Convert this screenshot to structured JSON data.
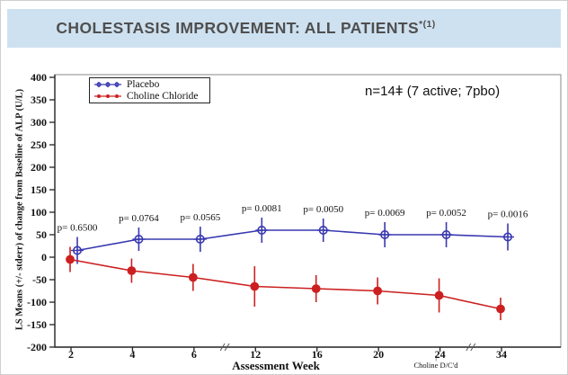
{
  "banner": {
    "title": "CHOLESTASIS IMPROVEMENT: ALL PATIENTS",
    "superscript": "*(1)",
    "bg_color": "#cee1f0",
    "text_color": "#4f4f4f"
  },
  "annotation": {
    "text": "n=14ǂ (7 active; 7pbo)"
  },
  "chart_data": {
    "type": "line",
    "title": "",
    "xlabel": "Assessment Week",
    "ylabel": "LS Means (+/- stderr) of change from Baseline of ALP (U/L)",
    "ylim": [
      -200,
      400
    ],
    "yticks": [
      400,
      350,
      300,
      250,
      200,
      150,
      100,
      50,
      0,
      -50,
      -100,
      -150,
      -200
    ],
    "categories": [
      "2",
      "4",
      "6",
      "12",
      "16",
      "20",
      "24",
      "34"
    ],
    "axis_breaks_after_index": [
      2,
      6
    ],
    "grid": false,
    "legend_position": "top-left",
    "series": [
      {
        "name": "Placebo",
        "color": "#3838b0",
        "marker": "open-circle-plus",
        "values": [
          15,
          40,
          40,
          60,
          60,
          50,
          50,
          45
        ],
        "stderr": [
          30,
          26,
          28,
          28,
          26,
          28,
          28,
          30
        ]
      },
      {
        "name": "Choline Chloride",
        "color": "#cc2020",
        "marker": "filled-circle",
        "values": [
          -5,
          -30,
          -45,
          -65,
          -70,
          -75,
          -85,
          -115
        ],
        "stderr": [
          28,
          27,
          30,
          45,
          30,
          30,
          38,
          25
        ]
      }
    ],
    "p_values": [
      "p= 0.6500",
      "p= 0.0764",
      "p= 0.0565",
      "p= 0.0081",
      "p= 0.0050",
      "p= 0.0069",
      "p= 0.0052",
      "p= 0.0016"
    ],
    "event_annotation": {
      "at_week": "24",
      "arrow": "↑",
      "label": "Choline D/C'd"
    }
  }
}
